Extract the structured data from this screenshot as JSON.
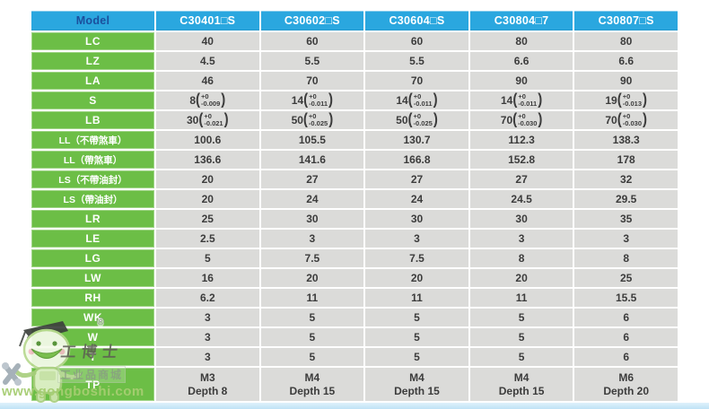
{
  "header": {
    "model_label": "Model",
    "columns": [
      "C30401□S",
      "C30602□S",
      "C30604□S",
      "C30804□7",
      "C30807□S"
    ]
  },
  "table": {
    "rows": [
      {
        "label": "LC",
        "values": [
          "40",
          "60",
          "60",
          "80",
          "80"
        ]
      },
      {
        "label": "LZ",
        "values": [
          "4.5",
          "5.5",
          "5.5",
          "6.6",
          "6.6"
        ]
      },
      {
        "label": "LA",
        "values": [
          "46",
          "70",
          "70",
          "90",
          "90"
        ]
      },
      {
        "label": "S",
        "values": [
          {
            "base": "8",
            "upper": "+0",
            "lower": "-0.009"
          },
          {
            "base": "14",
            "upper": "+0",
            "lower": "-0.011"
          },
          {
            "base": "14",
            "upper": "+0",
            "lower": "-0.011"
          },
          {
            "base": "14",
            "upper": "+0",
            "lower": "-0.011"
          },
          {
            "base": "19",
            "upper": "+0",
            "lower": "-0.013"
          }
        ]
      },
      {
        "label": "LB",
        "values": [
          {
            "base": "30",
            "upper": "+0",
            "lower": "-0.021"
          },
          {
            "base": "50",
            "upper": "+0",
            "lower": "-0.025"
          },
          {
            "base": "50",
            "upper": "+0",
            "lower": "-0.025"
          },
          {
            "base": "70",
            "upper": "+0",
            "lower": "-0.030"
          },
          {
            "base": "70",
            "upper": "+0",
            "lower": "-0.030"
          }
        ]
      },
      {
        "label": "LL（不帶煞車）",
        "values": [
          "100.6",
          "105.5",
          "130.7",
          "112.3",
          "138.3"
        ]
      },
      {
        "label": "LL（帶煞車）",
        "values": [
          "136.6",
          "141.6",
          "166.8",
          "152.8",
          "178"
        ]
      },
      {
        "label": "LS（不帶油封）",
        "values": [
          "20",
          "27",
          "27",
          "27",
          "32"
        ]
      },
      {
        "label": "LS（帶油封）",
        "values": [
          "20",
          "24",
          "24",
          "24.5",
          "29.5"
        ]
      },
      {
        "label": "LR",
        "values": [
          "25",
          "30",
          "30",
          "30",
          "35"
        ]
      },
      {
        "label": "LE",
        "values": [
          "2.5",
          "3",
          "3",
          "3",
          "3"
        ]
      },
      {
        "label": "LG",
        "values": [
          "5",
          "7.5",
          "7.5",
          "8",
          "8"
        ]
      },
      {
        "label": "LW",
        "values": [
          "16",
          "20",
          "20",
          "20",
          "25"
        ]
      },
      {
        "label": "RH",
        "values": [
          "6.2",
          "11",
          "11",
          "11",
          "15.5"
        ]
      },
      {
        "label": "WK",
        "values": [
          "3",
          "5",
          "5",
          "5",
          "6"
        ]
      },
      {
        "label": "W",
        "values": [
          "3",
          "5",
          "5",
          "5",
          "6"
        ]
      },
      {
        "label": "T",
        "values": [
          "3",
          "5",
          "5",
          "5",
          "6"
        ]
      },
      {
        "label": "TP",
        "tall": true,
        "values": [
          "M3\nDepth 8",
          "M4\nDepth 15",
          "M4\nDepth 15",
          "M4\nDepth 15",
          "M6\nDepth 20"
        ]
      }
    ]
  },
  "watermark": {
    "registered": "®",
    "brand": "工博士",
    "tagline": "工业品商城",
    "url": "www.gongboshi.com"
  },
  "colors": {
    "header_blue": "#2AA7DF",
    "label_green": "#6CBE46",
    "cell_gray": "#DBDBD9",
    "model_text": "#1B4F9D",
    "bottom_strip": "#C9E6F7",
    "watermark_green": "#A6CD72"
  }
}
